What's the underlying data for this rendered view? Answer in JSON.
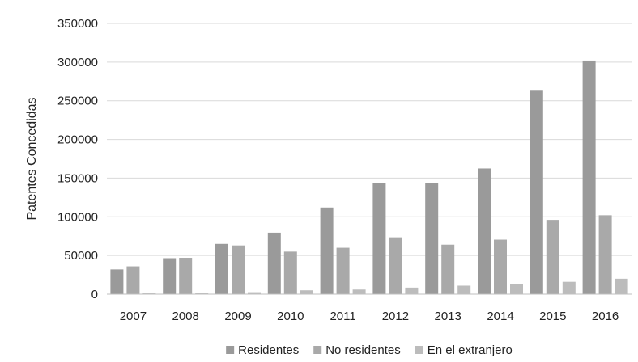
{
  "chart_data": {
    "type": "bar",
    "title": "",
    "xlabel": "",
    "ylabel": "Patentes Concedidas",
    "ylim": [
      0,
      350000
    ],
    "yticks": [
      0,
      50000,
      100000,
      150000,
      200000,
      250000,
      300000,
      350000
    ],
    "categories": [
      "2007",
      "2008",
      "2009",
      "2010",
      "2011",
      "2012",
      "2013",
      "2014",
      "2015",
      "2016"
    ],
    "series": [
      {
        "name": "Residentes",
        "color": "#9a9a9a",
        "values": [
          32000,
          46500,
          65000,
          79500,
          112000,
          144000,
          143500,
          162500,
          263000,
          302000
        ]
      },
      {
        "name": "No residentes",
        "color": "#a9a9a9",
        "values": [
          36000,
          47000,
          63000,
          55000,
          60000,
          73500,
          64000,
          70500,
          96000,
          102000
        ]
      },
      {
        "name": "En el extranjero",
        "color": "#bcbcbc",
        "values": [
          1000,
          2000,
          2500,
          5000,
          6000,
          8500,
          11000,
          13500,
          16000,
          20000
        ]
      }
    ],
    "grid": true,
    "legend": "bottom"
  }
}
